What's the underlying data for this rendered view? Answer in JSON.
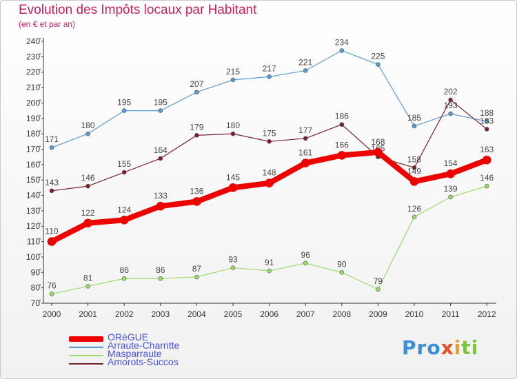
{
  "header": {
    "title": "Evolution des Impôts locaux par Habitant",
    "subtitle": "(en € et par an)"
  },
  "logo": {
    "text": "Proxiti",
    "parts": [
      "Pro",
      "x",
      "i",
      "ti"
    ]
  },
  "colors": {
    "title": "#c81e64",
    "legend_text": "#4a54d8",
    "axis": "#333333",
    "grid_tick": "#cc3333"
  },
  "chart_data": {
    "type": "line",
    "title": "Evolution des Impôts locaux par Habitant",
    "subtitle": "(en € et par an)",
    "x": [
      "2000",
      "2001",
      "2002",
      "2003",
      "2004",
      "2005",
      "2006",
      "2007",
      "2008",
      "2009",
      "2010",
      "2011",
      "2012"
    ],
    "ylim": [
      70,
      240
    ],
    "yticks": [
      70,
      80,
      90,
      100,
      110,
      120,
      130,
      140,
      150,
      160,
      170,
      180,
      190,
      200,
      210,
      220,
      230,
      240
    ],
    "legend_position": "bottom-left",
    "series": [
      {
        "name": "Arraute-Charritte",
        "color": "#5b9bd5",
        "width": 1.2,
        "dot": 3,
        "values": [
          171,
          180,
          195,
          195,
          207,
          215,
          217,
          221,
          234,
          225,
          185,
          193,
          188
        ],
        "labels": [
          "171",
          "180",
          "195",
          "195",
          "207",
          "215",
          "217",
          "221",
          "234",
          "225",
          "185",
          "193",
          "188"
        ]
      },
      {
        "name": "Amorots-Succos",
        "color": "#7a1f2b",
        "width": 1.2,
        "dot": 3,
        "values": [
          143,
          146,
          155,
          164,
          179,
          180,
          175,
          177,
          186,
          165,
          158,
          202,
          183
        ],
        "labels": [
          "143",
          "146",
          "155",
          "164",
          "179",
          "180",
          "175",
          "177",
          "186",
          "165",
          "158",
          "202",
          "183"
        ]
      },
      {
        "name": "Masparraute",
        "color": "#9bdb6c",
        "width": 1.2,
        "dot": 3,
        "values": [
          76,
          81,
          86,
          86,
          87,
          93,
          91,
          96,
          90,
          79,
          126,
          139,
          146
        ],
        "labels": [
          "76",
          "81",
          "86",
          "86",
          "87",
          "93",
          "91",
          "96",
          "90",
          "79",
          "126",
          "139",
          "146"
        ]
      },
      {
        "name": "ORèGUE",
        "color": "#ee0000",
        "width": 8,
        "dot": 6,
        "values": [
          110,
          122,
          124,
          133,
          136,
          145,
          148,
          161,
          166,
          168,
          149,
          154,
          163
        ],
        "labels": [
          "110",
          "122",
          "124",
          "133",
          "136",
          "145",
          "148",
          "161",
          "166",
          "168",
          "149",
          "154",
          "163"
        ]
      }
    ]
  },
  "legend": [
    {
      "name": "ORèGUE",
      "color": "#ee0000",
      "thickness": 8
    },
    {
      "name": "Arraute-Charritte",
      "color": "#5b9bd5",
      "thickness": 2
    },
    {
      "name": "Masparraute",
      "color": "#9bdb6c",
      "thickness": 2
    },
    {
      "name": "Amorots-Succos",
      "color": "#7a1f2b",
      "thickness": 2
    }
  ]
}
